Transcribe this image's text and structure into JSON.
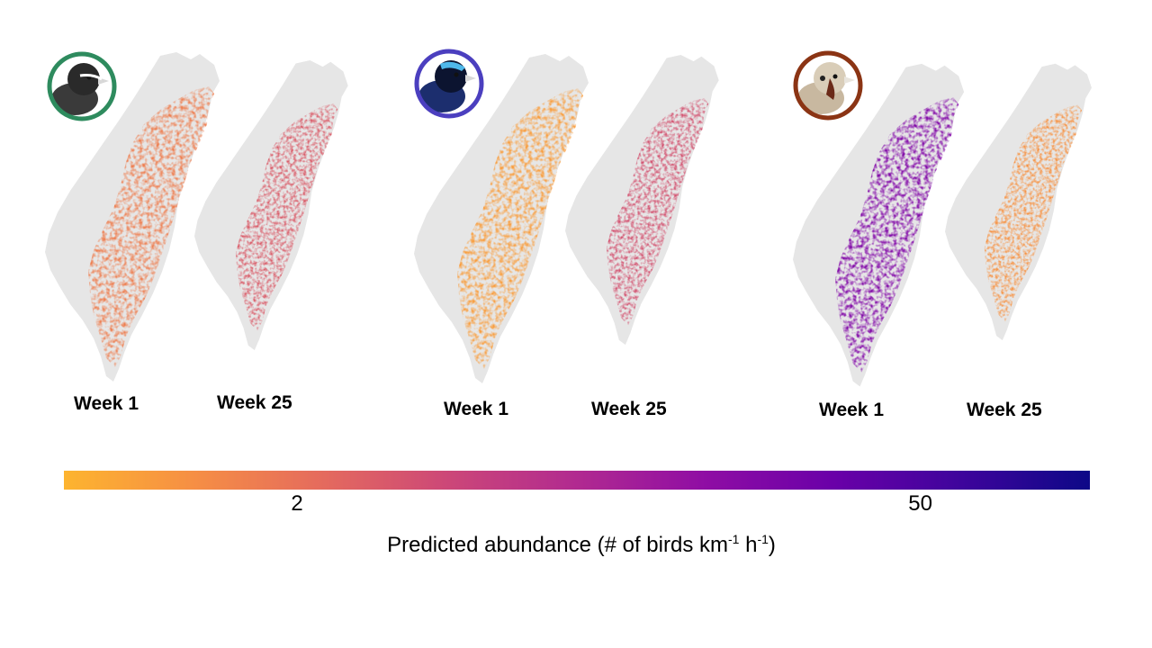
{
  "panels": [
    {
      "species_icon": "black-bird-white-brow-icon",
      "ring_color": "#2e8b5e",
      "maps": [
        {
          "label": "Week 1",
          "abundance": 1.6
        },
        {
          "label": "Week 25",
          "abundance": 3.0
        }
      ]
    },
    {
      "species_icon": "blue-bird-icon",
      "ring_color": "#4b3fbf",
      "maps": [
        {
          "label": "Week 1",
          "abundance": 0.9
        },
        {
          "label": "Week 25",
          "abundance": 3.6
        }
      ]
    },
    {
      "species_icon": "brown-sparrow-bird-icon",
      "ring_color": "#8b3414",
      "maps": [
        {
          "label": "Week 1",
          "abundance": 22
        },
        {
          "label": "Week 25",
          "abundance": 1.1
        }
      ]
    }
  ],
  "legend": {
    "title_main": "Predicted abundance (# of birds km",
    "title_sup1": "-1",
    "title_mid": " h",
    "title_sup2": "-1",
    "title_end": ")",
    "ticks": [
      {
        "value": 2,
        "label": "2"
      },
      {
        "value": 50,
        "label": "50"
      }
    ],
    "colors": [
      "#fdb42f",
      "#f68f44",
      "#e56b5d",
      "#cc4778",
      "#b12a90",
      "#8f0da4",
      "#6a00a8",
      "#3e049c",
      "#0d0887"
    ]
  }
}
